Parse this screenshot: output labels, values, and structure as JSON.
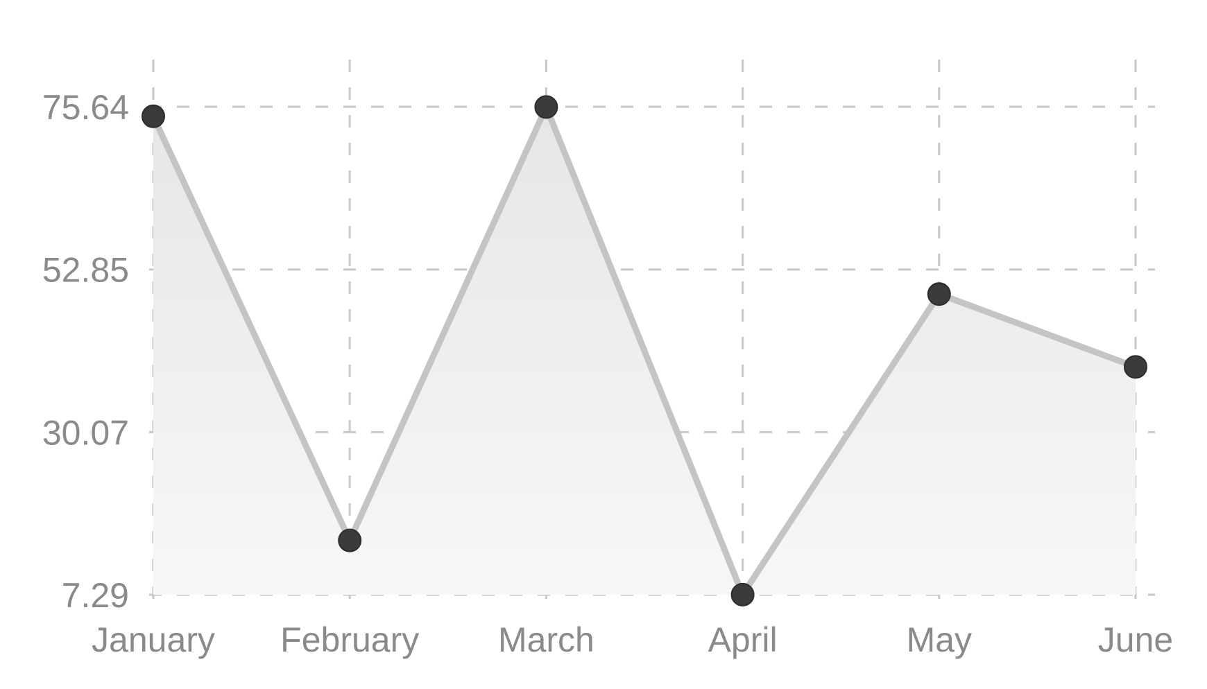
{
  "chart_data": {
    "type": "area",
    "categories": [
      "January",
      "February",
      "March",
      "April",
      "May",
      "June"
    ],
    "series": [
      {
        "values": [
          74.3,
          14.9,
          75.6,
          7.3,
          49.4,
          39.2
        ]
      }
    ],
    "yticks": [
      "7.29",
      "30.07",
      "52.85",
      "75.64"
    ],
    "ytick_values": [
      7.29,
      30.07,
      52.85,
      75.64
    ],
    "ylim": [
      7.29,
      75.64
    ],
    "grid": true,
    "colors": {
      "line": "#c4c4c4",
      "point": "#3b3b3b",
      "area_top": "#e6e6e6",
      "area_bottom": "#f7f7f7",
      "grid": "#c8c8c8",
      "text": "#8a8a8a"
    }
  }
}
